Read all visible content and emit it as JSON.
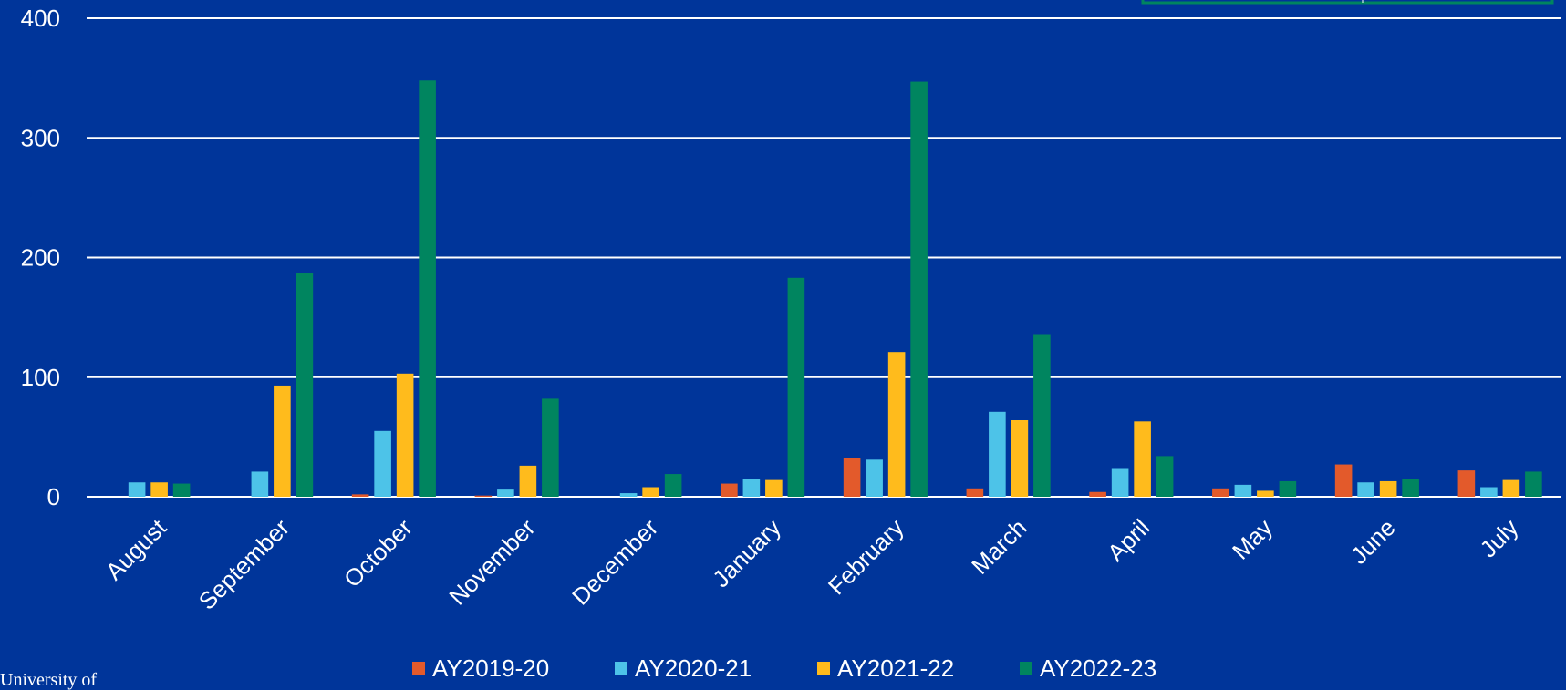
{
  "chart_data": {
    "type": "bar",
    "categories": [
      "August",
      "September",
      "October",
      "November",
      "December",
      "January",
      "February",
      "March",
      "April",
      "May",
      "June",
      "July"
    ],
    "series": [
      {
        "name": "AY2019-20",
        "color": "#e35a2b",
        "values": [
          0,
          0,
          2,
          1,
          0,
          11,
          32,
          7,
          4,
          7,
          27,
          22
        ]
      },
      {
        "name": "AY2020-21",
        "color": "#4dc3e8",
        "values": [
          12,
          21,
          55,
          6,
          3,
          15,
          31,
          71,
          24,
          10,
          12,
          8
        ]
      },
      {
        "name": "AY2021-22",
        "color": "#ffbb1c",
        "values": [
          12,
          93,
          103,
          26,
          8,
          14,
          121,
          64,
          63,
          5,
          13,
          14
        ]
      },
      {
        "name": "AY2022-23",
        "color": "#00855f",
        "values": [
          11,
          187,
          348,
          82,
          19,
          183,
          347,
          136,
          34,
          13,
          15,
          21
        ]
      }
    ],
    "ylim": [
      0,
      400
    ],
    "yticks": [
      0,
      100,
      200,
      300,
      400
    ],
    "grid": true,
    "legend": "bottom"
  },
  "footer_text": "University of"
}
